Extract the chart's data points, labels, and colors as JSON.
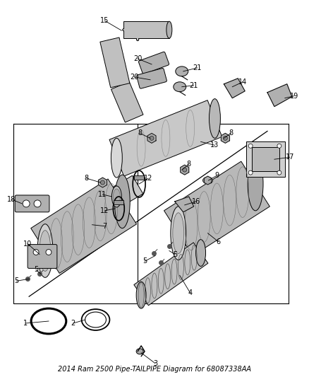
{
  "title": "2014 Ram 2500 Pipe-TAILPIPE Diagram for 68087338AA",
  "bg_color": "#ffffff",
  "fig_width": 4.38,
  "fig_height": 5.33,
  "dpi": 100,
  "line_color": "#000000",
  "label_fontsize": 7,
  "title_fontsize": 7,
  "part_gray": "#c8c8c8",
  "part_dark": "#888888",
  "part_mid": "#aaaaaa"
}
